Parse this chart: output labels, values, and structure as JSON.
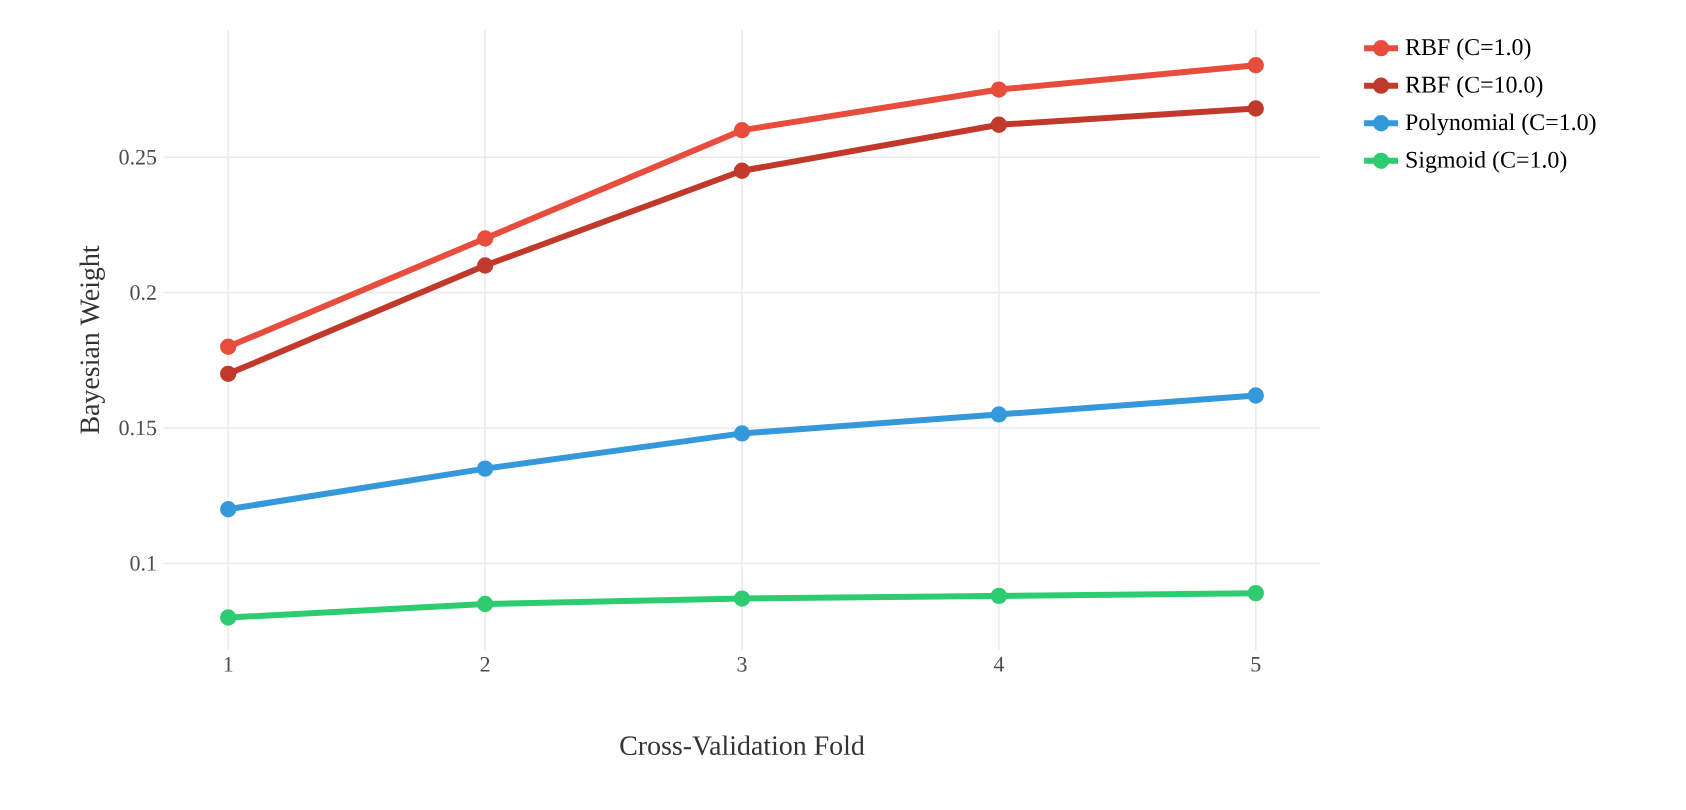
{
  "chart_data": {
    "type": "line",
    "xlabel": "Cross-Validation Fold",
    "ylabel": "Bayesian Weight",
    "x": [
      1,
      2,
      3,
      4,
      5
    ],
    "series": [
      {
        "name": "RBF (C=1.0)",
        "color": "#e74c3c",
        "values": [
          0.18,
          0.22,
          0.26,
          0.275,
          0.284
        ]
      },
      {
        "name": "RBF (C=10.0)",
        "color": "#c0392b",
        "values": [
          0.17,
          0.21,
          0.245,
          0.262,
          0.268
        ]
      },
      {
        "name": "Polynomial (C=1.0)",
        "color": "#3498db",
        "values": [
          0.12,
          0.135,
          0.148,
          0.155,
          0.162
        ]
      },
      {
        "name": "Sigmoid (C=1.0)",
        "color": "#2ecc71",
        "values": [
          0.08,
          0.085,
          0.087,
          0.088,
          0.089
        ]
      }
    ],
    "xlim": [
      0.75,
      5.25
    ],
    "ylim": [
      0.068,
      0.297
    ],
    "xticks": [
      1,
      2,
      3,
      4,
      5
    ],
    "yticks": [
      0.1,
      0.15,
      0.2,
      0.25
    ],
    "grid": true,
    "legend": "top right",
    "marker": "circle",
    "line_style": "solid"
  }
}
